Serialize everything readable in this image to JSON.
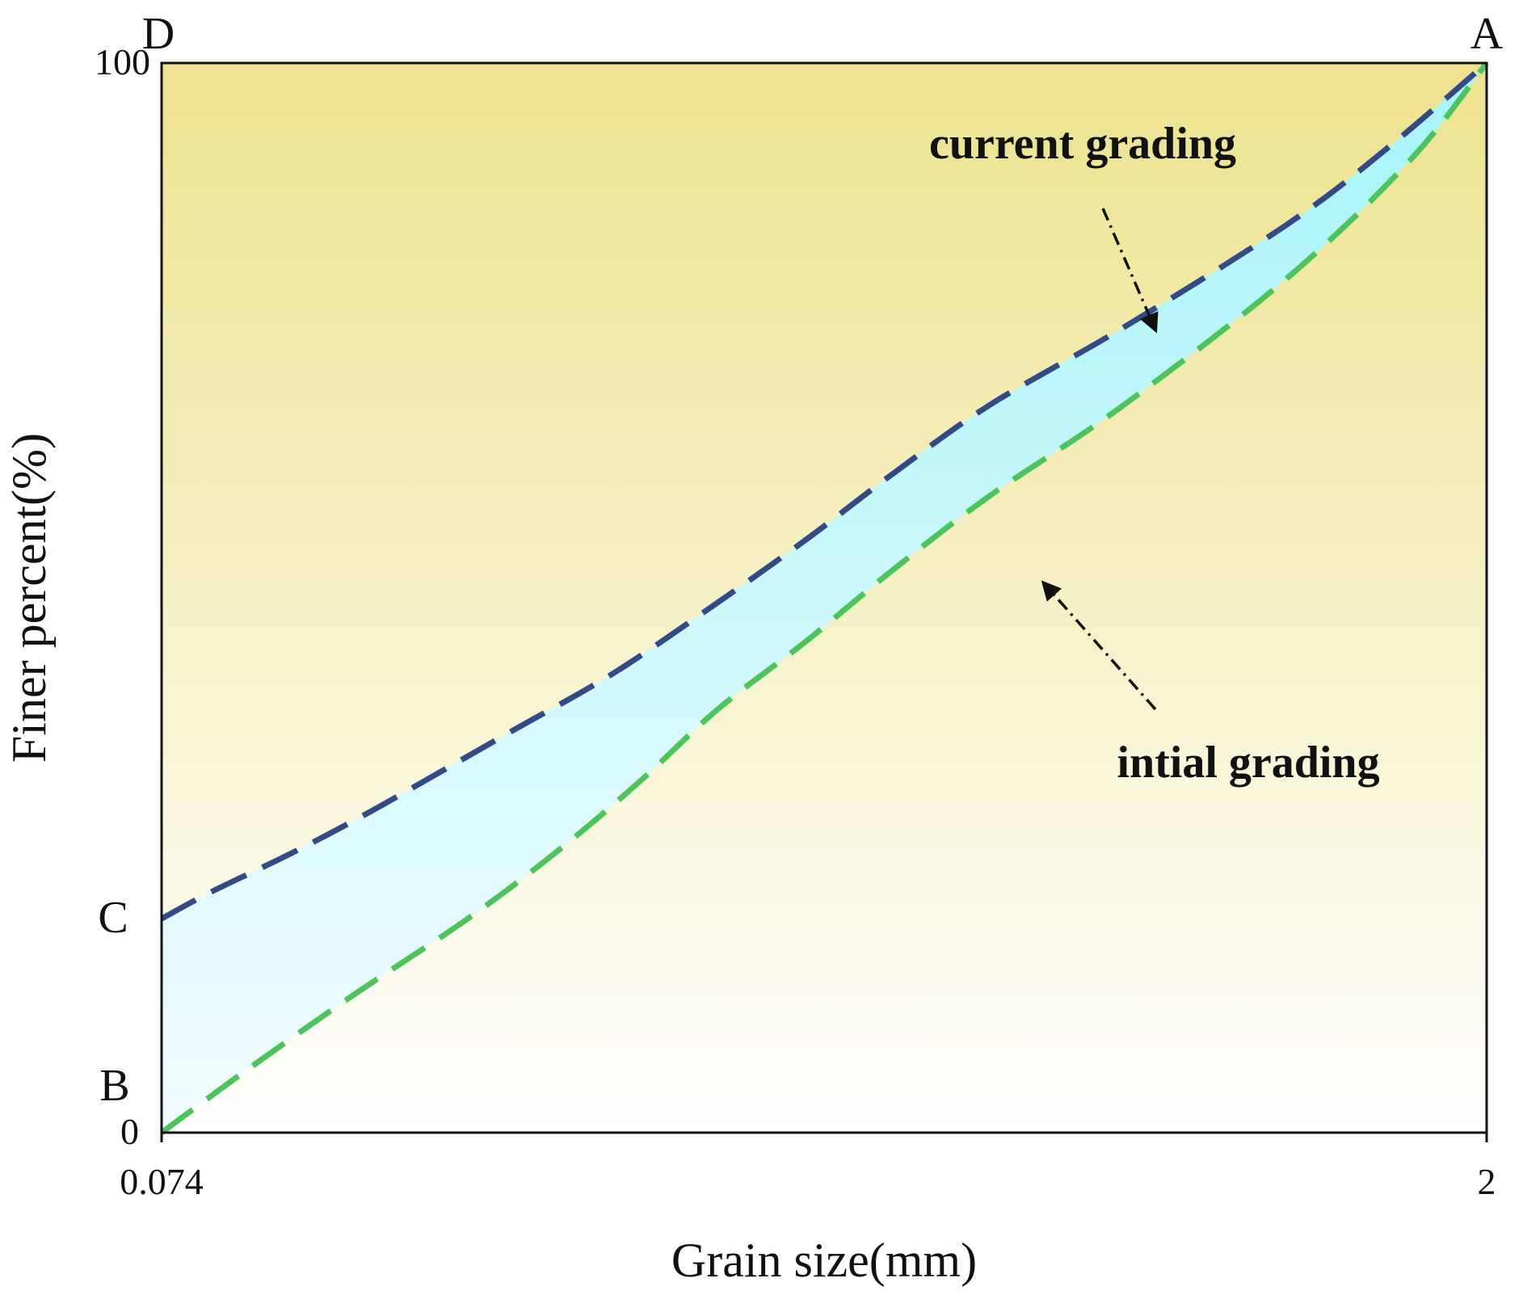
{
  "chart_data": {
    "type": "line",
    "title": "",
    "xlabel": "Grain size(mm)",
    "ylabel": "Finer percent(%)",
    "xlim": [
      0.074,
      2
    ],
    "ylim": [
      0,
      100
    ],
    "x_tick_labels": [
      "0.074",
      "2"
    ],
    "y_tick_labels": [
      "0",
      "100"
    ],
    "grid": false,
    "background": {
      "top": "#EDE28E",
      "bottom": "#FFFFFF"
    },
    "band_fill": {
      "top": "#A6F4F7",
      "bottom": "#F2FCFF"
    },
    "corner_labels": {
      "A": "A",
      "B": "B",
      "C": "C",
      "D": "D"
    },
    "series": [
      {
        "name": "current grading",
        "color": "#344A86",
        "style": "dashed",
        "x": [
          0.074,
          0.146,
          0.259,
          0.363,
          0.473,
          0.582,
          0.732,
          0.881,
          1.012,
          1.135,
          1.277,
          1.478,
          1.712,
          1.855,
          2.0
        ],
        "y": [
          20,
          22.5,
          26,
          29.5,
          33.5,
          37.5,
          43,
          49.5,
          55.5,
          61.5,
          68,
          75.5,
          85,
          92,
          100
        ]
      },
      {
        "name": "intial grading",
        "color": "#4FC35B",
        "style": "dashed",
        "x": [
          0.074,
          0.201,
          0.356,
          0.519,
          0.653,
          0.772,
          0.881,
          1.012,
          1.135,
          1.277,
          1.472,
          1.712,
          1.89,
          2.0
        ],
        "y": [
          0,
          6,
          13,
          20,
          26.5,
          33,
          39.5,
          46,
          52.5,
          59.5,
          68,
          80,
          91,
          100
        ]
      }
    ],
    "annotations": [
      {
        "text": "current grading",
        "target_series": "current grading",
        "arrow": "dash-dot"
      },
      {
        "text": "intial grading",
        "target_series": "intial grading",
        "arrow": "dash-dot"
      }
    ]
  }
}
